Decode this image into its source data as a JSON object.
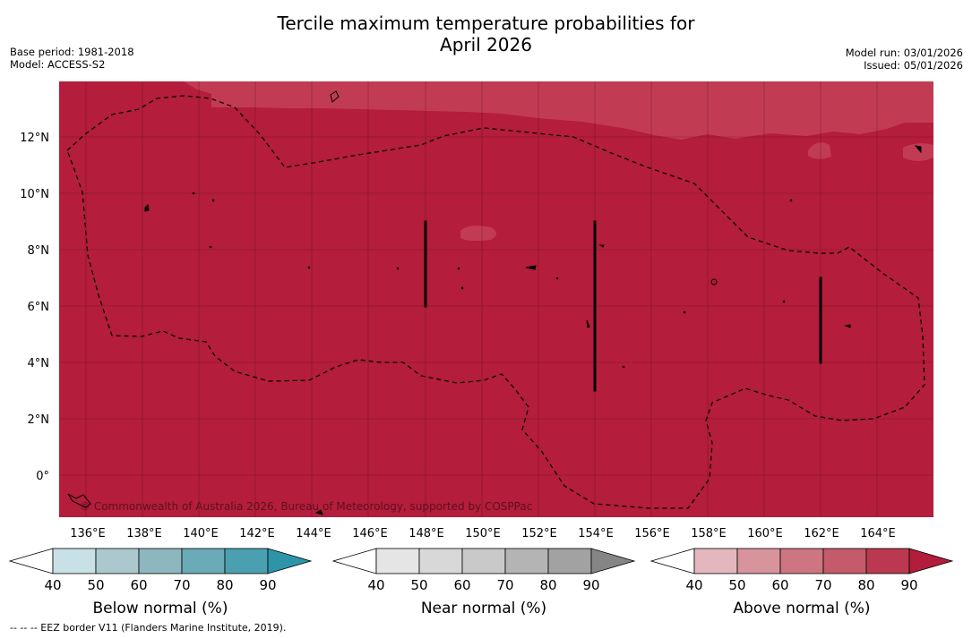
{
  "header": {
    "title_line1": "Tercile maximum temperature probabilities for",
    "title_line2": "April 2026",
    "base_period": "Base period: 1981-2018",
    "model": "Model: ACCESS-S2",
    "model_run": "Model run: 03/01/2026",
    "issued": "Issued: 05/01/2026"
  },
  "map": {
    "lat_labels": [
      "12°N",
      "10°N",
      "8°N",
      "6°N",
      "4°N",
      "2°N",
      "0°"
    ],
    "lon_labels": [
      "136°E",
      "138°E",
      "140°E",
      "142°E",
      "144°E",
      "146°E",
      "148°E",
      "150°E",
      "152°E",
      "154°E",
      "156°E",
      "158°E",
      "160°E",
      "162°E",
      "164°E"
    ],
    "copyright": "© Commonwealth of Australia 2026, Bureau of Meteorology, supported by COSPPac",
    "colors": {
      "above_80_90": "#b41d3b",
      "above_70_80": "#c13c53",
      "land": "#000000"
    }
  },
  "colorbars": [
    {
      "title": "Below normal (%)",
      "ticks": [
        "40",
        "50",
        "60",
        "70",
        "80",
        "90"
      ],
      "colors": [
        "#ffffff",
        "#c7e1e6",
        "#abc8ce",
        "#8db6be",
        "#6babb8",
        "#4aa0b0",
        "#2c95a9"
      ]
    },
    {
      "title": "Near normal (%)",
      "ticks": [
        "40",
        "50",
        "60",
        "70",
        "80",
        "90"
      ],
      "colors": [
        "#ffffff",
        "#e5e5e5",
        "#d8d8d8",
        "#c9c9c9",
        "#b4b4b4",
        "#a2a2a2",
        "#858585"
      ]
    },
    {
      "title": "Above normal (%)",
      "ticks": [
        "40",
        "50",
        "60",
        "70",
        "80",
        "90"
      ],
      "colors": [
        "#ffffff",
        "#e3b7bd",
        "#d8949c",
        "#cd7681",
        "#c55b6a",
        "#bb3950",
        "#b11d3a"
      ]
    }
  ],
  "footnote": "--  --  -- EEZ border V11 (Flanders Marine Institute, 2019)."
}
